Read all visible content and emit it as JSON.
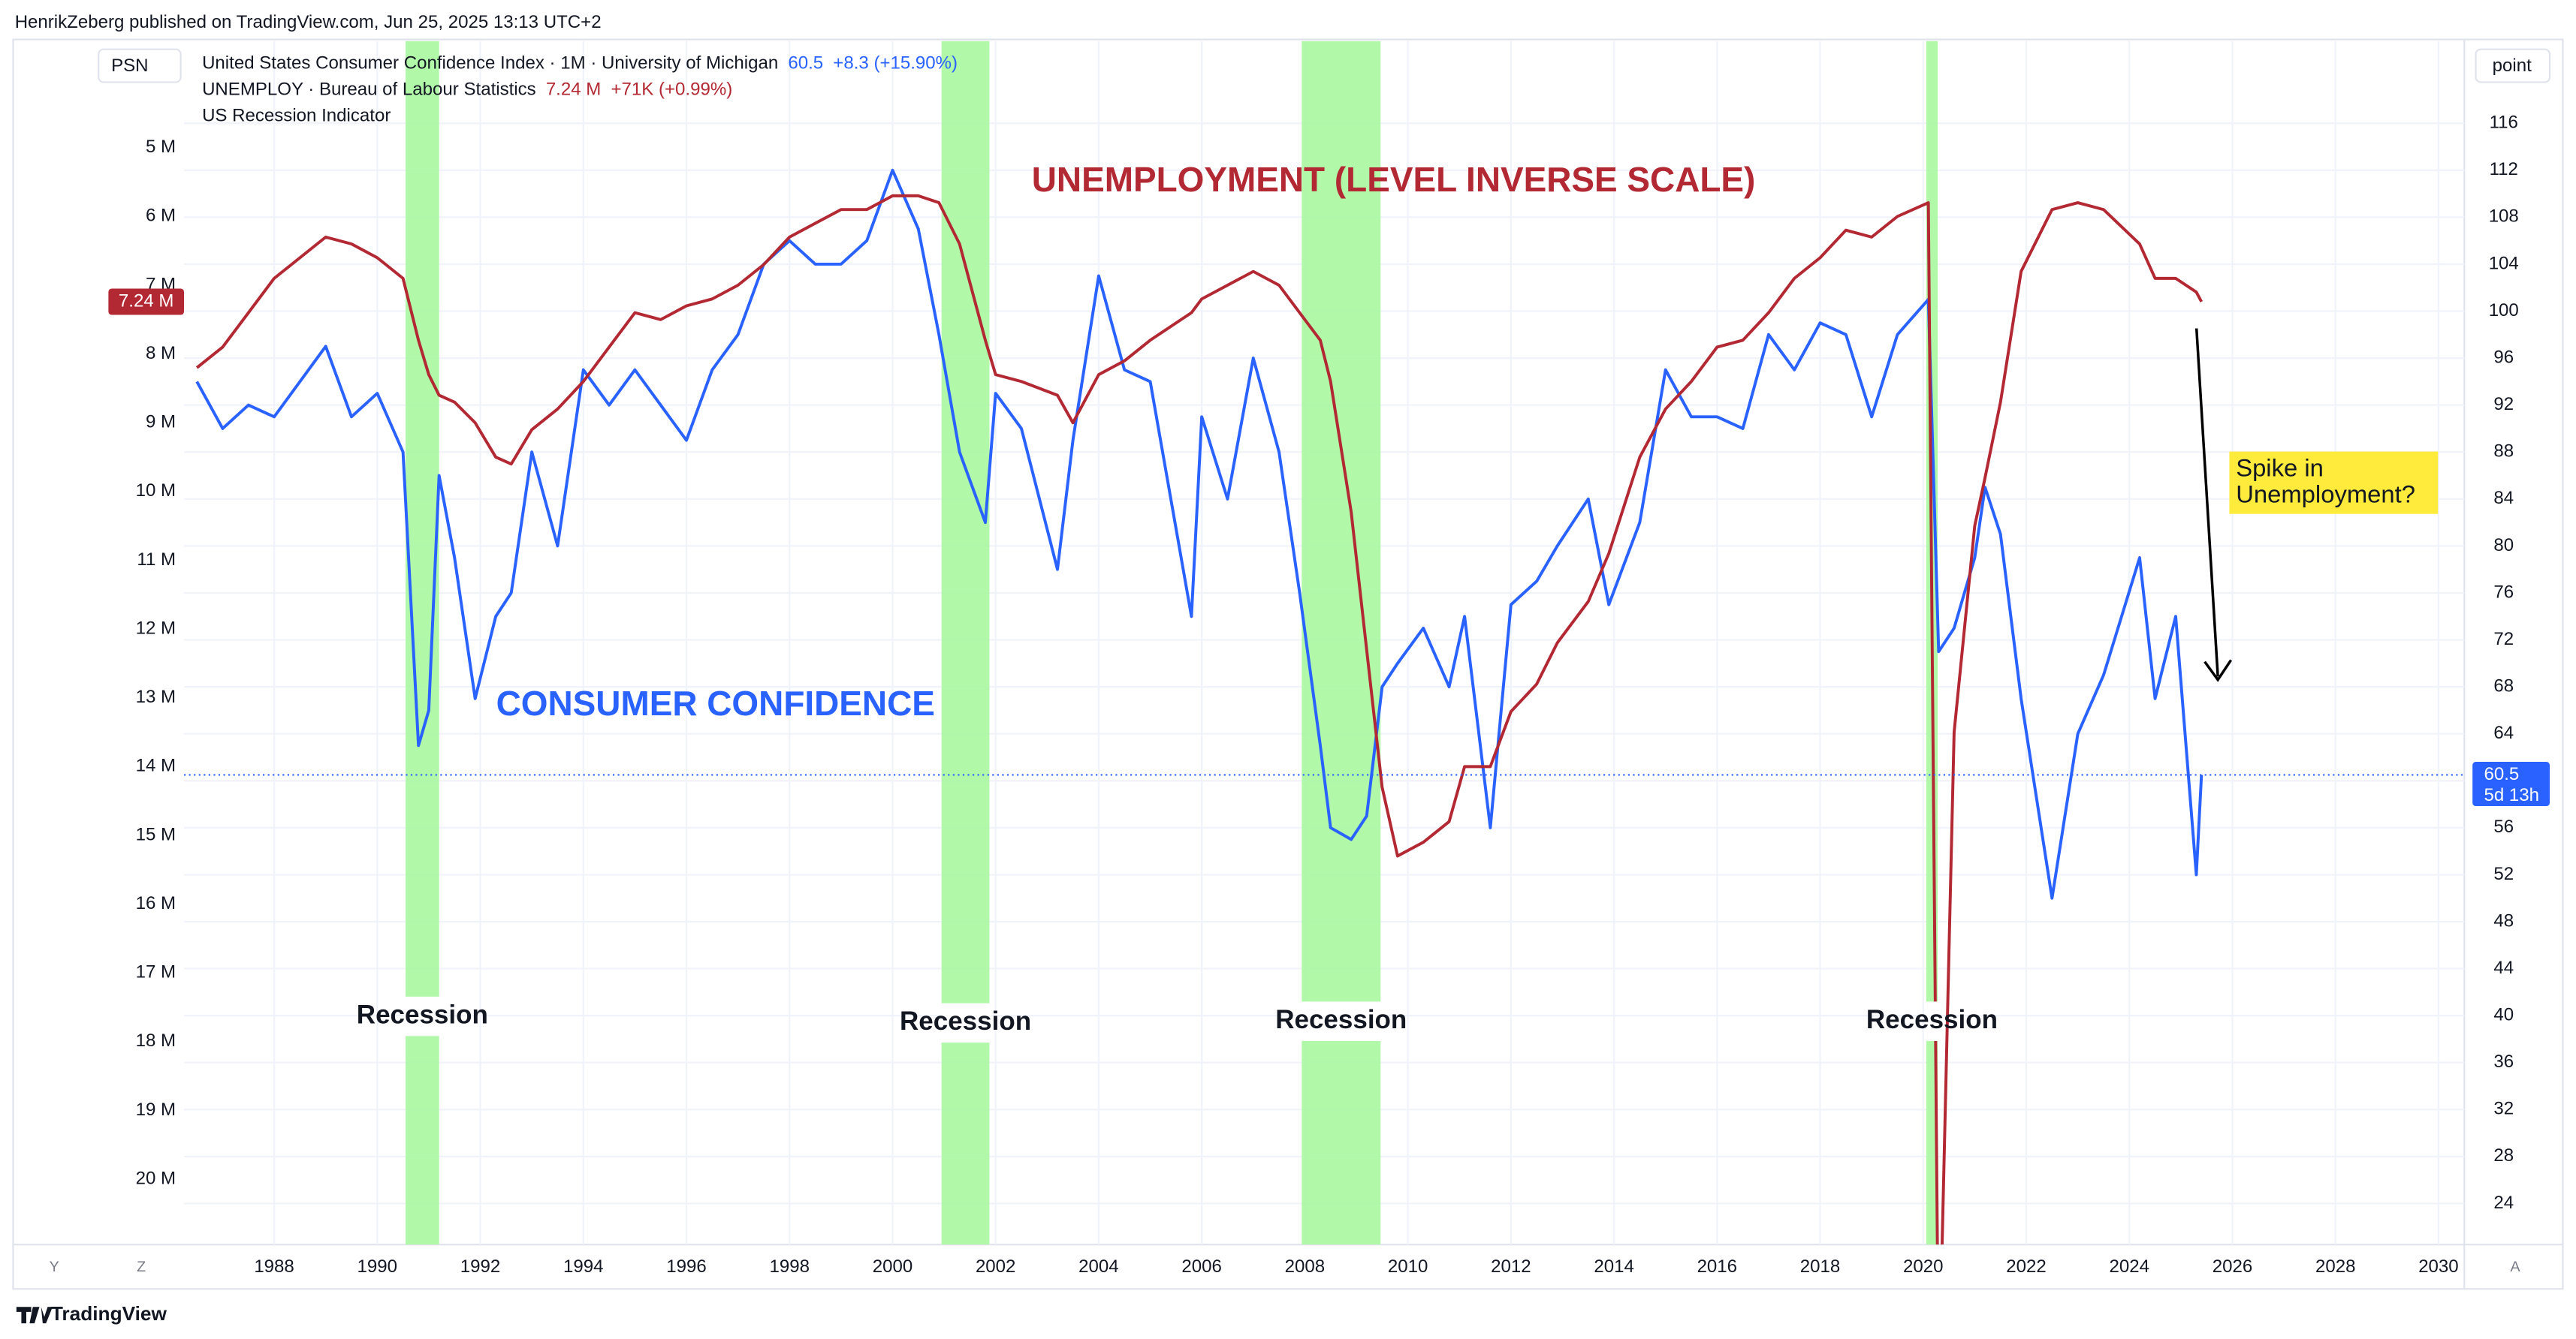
{
  "header": "HenrikZeberg published on TradingView.com, Jun 25, 2025 13:13 UTC+2",
  "footer": "TradingView",
  "symbol_button": "PSN",
  "scale_button": "point",
  "bottom_buttons": [
    "Y",
    "Z",
    "A"
  ],
  "chart_data": {
    "type": "line",
    "x": [
      1986.5,
      1987.0,
      1987.5,
      1988.0,
      1988.5,
      1989.0,
      1989.5,
      1990.0,
      1990.5,
      1990.8,
      1991.0,
      1991.2,
      1991.5,
      1991.9,
      1992.3,
      1992.6,
      1993.0,
      1993.5,
      1994.0,
      1994.5,
      1995.0,
      1995.5,
      1996.0,
      1996.5,
      1997.0,
      1997.5,
      1998.0,
      1998.5,
      1999.0,
      1999.5,
      2000.0,
      2000.5,
      2000.9,
      2001.3,
      2001.8,
      2002.0,
      2002.5,
      2003.2,
      2003.5,
      2004.0,
      2004.5,
      2005.0,
      2005.8,
      2006.0,
      2006.5,
      2007.0,
      2007.5,
      2007.9,
      2008.3,
      2008.5,
      2008.9,
      2009.2,
      2009.5,
      2009.8,
      2010.3,
      2010.8,
      2011.1,
      2011.6,
      2012.0,
      2012.5,
      2012.9,
      2013.5,
      2013.9,
      2014.5,
      2015.0,
      2015.5,
      2016.0,
      2016.5,
      2017.0,
      2017.5,
      2018.0,
      2018.5,
      2019.0,
      2019.5,
      2020.1,
      2020.3,
      2020.6,
      2021.0,
      2021.2,
      2021.5,
      2021.9,
      2022.5,
      2023.0,
      2023.5,
      2024.2,
      2024.5,
      2024.9,
      2025.3,
      2025.4
    ],
    "xlim": [
      1986.25,
      2030.5
    ],
    "xticks": [
      1988,
      1990,
      1992,
      1994,
      1996,
      1998,
      2000,
      2002,
      2004,
      2006,
      2008,
      2010,
      2012,
      2014,
      2016,
      2018,
      2020,
      2022,
      2024,
      2026,
      2028,
      2030
    ],
    "ylim": [
      3.45,
      20.95
    ],
    "inverted": true,
    "yticks": [
      {
        "value": 5,
        "label": "5 M"
      },
      {
        "value": 6,
        "label": "6 M"
      },
      {
        "value": 7,
        "label": "7 M"
      },
      {
        "value": 8,
        "label": "8 M"
      },
      {
        "value": 9,
        "label": "9 M"
      },
      {
        "value": 10,
        "label": "10 M"
      },
      {
        "value": 11,
        "label": "11 M"
      },
      {
        "value": 12,
        "label": "12 M"
      },
      {
        "value": 13,
        "label": "13 M"
      },
      {
        "value": 14,
        "label": "14 M"
      },
      {
        "value": 15,
        "label": "15 M"
      },
      {
        "value": 16,
        "label": "16 M"
      },
      {
        "value": 17,
        "label": "17 M"
      },
      {
        "value": 18,
        "label": "18 M"
      },
      {
        "value": 19,
        "label": "19 M"
      },
      {
        "value": 20,
        "label": "20 M"
      }
    ],
    "y2lim": [
      20.5,
      123
    ],
    "y2ticks": [
      24,
      28,
      32,
      36,
      40,
      44,
      48,
      52,
      56,
      60,
      64,
      68,
      72,
      76,
      80,
      84,
      88,
      92,
      96,
      100,
      104,
      108,
      112,
      116
    ],
    "grid": true,
    "series": [
      {
        "name": "United States Consumer Confidence Index · 1M · University of Michigan",
        "color": "#2962ff",
        "axis": "y2",
        "change": "+8.3 (+15.90%)",
        "countdown": "5d 13h",
        "values": [
          94,
          90,
          92,
          91,
          94,
          97,
          91,
          93,
          88,
          63,
          66,
          86,
          79,
          67,
          74,
          76,
          88,
          80,
          95,
          92,
          95,
          92,
          89,
          95,
          98,
          104,
          106,
          104,
          104,
          106,
          112,
          107,
          98,
          88,
          82,
          93,
          90,
          78,
          89,
          103,
          95,
          94,
          74,
          91,
          84,
          96,
          88,
          76,
          63,
          56,
          55,
          57,
          68,
          70,
          73,
          68,
          74,
          56,
          75,
          77,
          80,
          84,
          75,
          82,
          95,
          91,
          91,
          90,
          98,
          95,
          99,
          98,
          91,
          98,
          101,
          71,
          73,
          79,
          85,
          81,
          67,
          50,
          64,
          69,
          79,
          67,
          74,
          52,
          60.5
        ]
      },
      {
        "name": "UNEMPLOY · Bureau of Labour Statistics",
        "color": "#b22833",
        "axis": "y",
        "last_label": "7.24 M",
        "change": "+71K (+0.99%)",
        "values": [
          8.2,
          7.9,
          7.4,
          6.9,
          6.6,
          6.3,
          6.4,
          6.6,
          6.9,
          7.8,
          8.3,
          8.6,
          8.7,
          9.0,
          9.5,
          9.6,
          9.1,
          8.8,
          8.4,
          7.9,
          7.4,
          7.5,
          7.3,
          7.2,
          7.0,
          6.7,
          6.3,
          6.1,
          5.9,
          5.9,
          5.7,
          5.7,
          5.8,
          6.4,
          7.8,
          8.3,
          8.4,
          8.6,
          9.0,
          8.3,
          8.1,
          7.8,
          7.4,
          7.2,
          7.0,
          6.8,
          7.0,
          7.4,
          7.8,
          8.4,
          10.3,
          12.3,
          14.3,
          15.3,
          15.1,
          14.8,
          14.0,
          14.0,
          13.2,
          12.8,
          12.2,
          11.6,
          10.9,
          9.5,
          8.8,
          8.4,
          7.9,
          7.8,
          7.4,
          6.9,
          6.6,
          6.2,
          6.3,
          6.0,
          5.8,
          23.1,
          13.5,
          10.5,
          9.8,
          8.7,
          6.8,
          5.9,
          5.8,
          5.9,
          6.4,
          6.9,
          6.9,
          7.1,
          7.24
        ]
      }
    ],
    "recessions": {
      "name": "US Recession Indicator",
      "color": "#a8f7a0",
      "bands": [
        [
          1990.55,
          1991.2
        ],
        [
          2000.95,
          2001.88
        ],
        [
          2007.94,
          2009.47
        ],
        [
          2020.06,
          2020.28
        ]
      ],
      "labels": [
        "Recession",
        "Recession",
        "Recession",
        "Recession"
      ]
    },
    "annotations": [
      {
        "text": "UNEMPLOYMENT (LEVEL INVERSE SCALE)",
        "color": "#b22833"
      },
      {
        "text": "CONSUMER CONFIDENCE",
        "color": "#2962ff"
      },
      {
        "lines": [
          "Spike in",
          "Unemployment?"
        ],
        "color": "#ffeb3b"
      }
    ]
  }
}
